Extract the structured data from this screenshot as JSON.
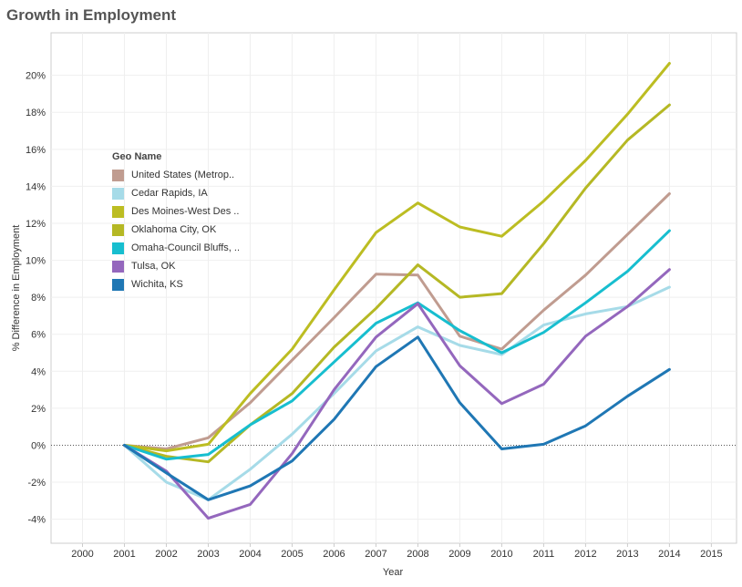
{
  "title": "Growth in Employment",
  "colors": {
    "grid": "#efefef",
    "axis": "#cccccc",
    "zero_line": "#555555",
    "tick_text": "#333333"
  },
  "chart_data": {
    "type": "line",
    "title": "Growth in Employment",
    "xlabel": "Year",
    "ylabel": "% Difference in Employment",
    "x_ticks": [
      "2000",
      "2001",
      "2002",
      "2003",
      "2004",
      "2005",
      "2006",
      "2007",
      "2008",
      "2009",
      "2010",
      "2011",
      "2012",
      "2013",
      "2014",
      "2015"
    ],
    "y_ticks": [
      "20%",
      "18%",
      "16%",
      "14%",
      "12%",
      "10%",
      "8%",
      "6%",
      "4%",
      "2%",
      "0%",
      "-2%",
      "-4%"
    ],
    "xlim": [
      1999.25,
      2015.6
    ],
    "ylim": [
      -5.3,
      22.3
    ],
    "grid": true,
    "zero_line": "dotted",
    "legend_title": "Geo Name",
    "legend_position": "left-middle",
    "x": [
      2001,
      2002,
      2003,
      2004,
      2005,
      2006,
      2007,
      2008,
      2009,
      2010,
      2011,
      2012,
      2013,
      2014
    ],
    "series": [
      {
        "name": "United States (Metrop..",
        "color": "#c09c90",
        "values": [
          0,
          -0.2,
          0.4,
          2.3,
          4.6,
          6.9,
          9.25,
          9.2,
          5.9,
          5.2,
          7.3,
          9.2,
          11.4,
          13.6
        ]
      },
      {
        "name": "Cedar Rapids, IA",
        "color": "#a6dbe8",
        "values": [
          0,
          -2.0,
          -2.95,
          -1.3,
          0.6,
          2.8,
          5.1,
          6.4,
          5.4,
          4.9,
          6.5,
          7.1,
          7.5,
          8.55
        ]
      },
      {
        "name": "Des Moines-West Des ..",
        "color": "#bcbd22",
        "values": [
          0,
          -0.3,
          0.05,
          2.8,
          5.2,
          8.4,
          11.5,
          13.1,
          11.8,
          11.3,
          13.2,
          15.4,
          17.9,
          20.65
        ]
      },
      {
        "name": "Oklahoma City, OK",
        "color": "#b5b824",
        "values": [
          0,
          -0.6,
          -0.9,
          1.1,
          2.8,
          5.3,
          7.4,
          9.75,
          8.0,
          8.2,
          10.9,
          13.9,
          16.5,
          18.4
        ]
      },
      {
        "name": "Omaha-Council Bluffs, ..",
        "color": "#17becf",
        "values": [
          0,
          -0.75,
          -0.5,
          1.1,
          2.4,
          4.5,
          6.6,
          7.7,
          6.2,
          5.0,
          6.1,
          7.7,
          9.4,
          11.6
        ]
      },
      {
        "name": "Tulsa, OK",
        "color": "#9467bd",
        "values": [
          0,
          -1.4,
          -3.95,
          -3.2,
          -0.45,
          3.0,
          5.85,
          7.65,
          4.3,
          2.25,
          3.3,
          5.9,
          7.5,
          9.5
        ]
      },
      {
        "name": "Wichita, KS",
        "color": "#1f77b4",
        "values": [
          0,
          -1.5,
          -2.95,
          -2.2,
          -0.85,
          1.4,
          4.25,
          5.85,
          2.3,
          -0.2,
          0.05,
          1.05,
          2.65,
          4.1
        ]
      }
    ]
  }
}
